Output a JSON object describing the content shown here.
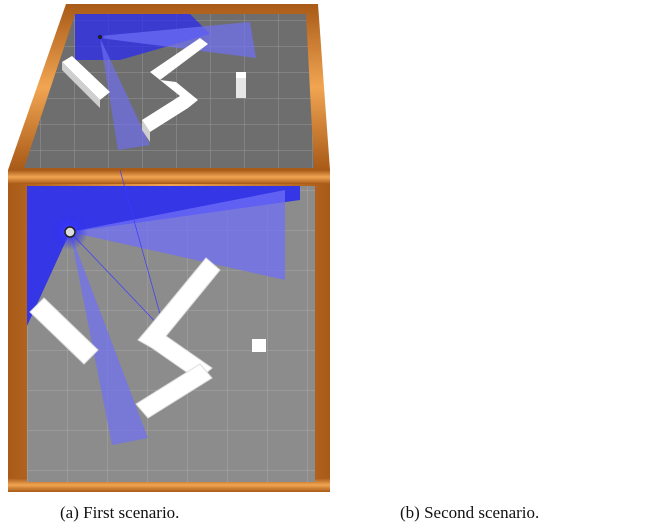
{
  "captions": {
    "a": "(a) First scenario.",
    "b": "(b) Second scenario."
  },
  "colors": {
    "floor": "#8c8c8c",
    "floor_far": "#6e6e6e",
    "grid": "#a9a9a9",
    "laser_blue": "#2b2cf0",
    "wall_wood": "#d9822b",
    "wall_wood_dark": "#9b5514",
    "obstacle": "#ffffff",
    "shadow": "#555555"
  },
  "icons": {
    "robot": "robot-sensor-icon"
  }
}
